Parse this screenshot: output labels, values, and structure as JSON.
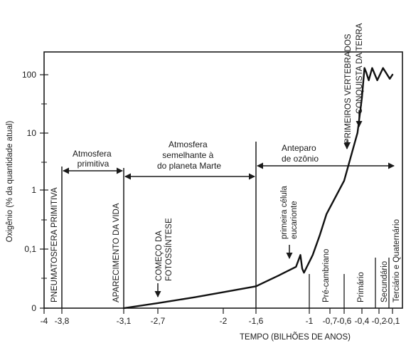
{
  "chart_data": {
    "type": "line",
    "xlabel": "TEMPO (BILHÕES DE ANOS)",
    "ylabel": "Oxigênio (% da quantidade atual)",
    "x_ticks": [
      "-4",
      "-3,8",
      "-3,1",
      "-2,7",
      "-2",
      "-1,6",
      "-1",
      "-0,7",
      "-0,6",
      "-0,4",
      "-0,2",
      "-0,1"
    ],
    "y_ticks": [
      "0",
      "0,1",
      "1",
      "10",
      "100"
    ],
    "xlim": [
      -4,
      0
    ],
    "y_scale": "log",
    "series": [
      {
        "x": [
          -3.1,
          -2.7,
          -2.3,
          -2.0,
          -1.6,
          -1.35,
          -1.15,
          -1.1,
          -1.08,
          -1.06,
          -0.95,
          -0.85,
          -0.75,
          -0.6,
          -0.45,
          -0.4,
          -0.37,
          -0.35,
          -0.32,
          -0.28,
          -0.22,
          -0.17,
          -0.12,
          -0.07
        ],
        "y": [
          0,
          0.0085,
          0.0185,
          0.027,
          0.037,
          0.055,
          0.07,
          0.09,
          0.067,
          0.06,
          0.09,
          0.17,
          0.4,
          1.5,
          10,
          40,
          130,
          110,
          80,
          130,
          80,
          130,
          85,
          100
        ]
      }
    ],
    "regions": [
      {
        "label": "Atmosfera primitiva",
        "from": "-3,8",
        "to": "-3,1"
      },
      {
        "label": "Atmosfera semelhante à do planeta Marte",
        "from": "-3,1",
        "to": "-1,6"
      },
      {
        "label": "Anteparo de ozônio",
        "from": "-1,6",
        "to": "-0,1"
      }
    ],
    "vertical_labels": [
      "PNEUMATOSFERA PRIMITIVA",
      "APARECIMENTO DA VIDA",
      "Pré-cambriano",
      "Primário",
      "Secundário",
      "Terciário e Quaternário"
    ],
    "annotations": [
      "COMEÇO DA FOTOSSÍNTESE",
      "primeira célula eucarionte",
      "PRIMEIROS VERTEBRADOS",
      "CONQUISTA DA TERRA"
    ]
  }
}
